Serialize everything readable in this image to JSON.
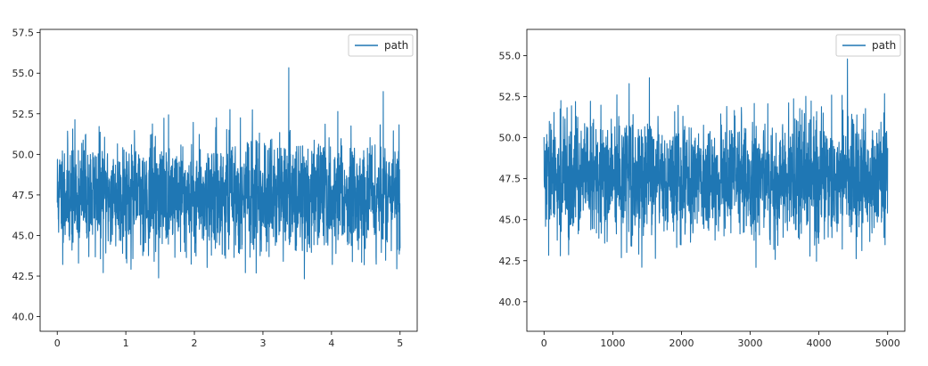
{
  "chart_data": [
    {
      "type": "line",
      "series": [
        {
          "name": "path",
          "color": "#1f77b4",
          "process": {
            "mean": 47.5,
            "sd": 1.7,
            "n": 2000
          }
        }
      ],
      "x_range": [
        0,
        5
      ],
      "xlim": [
        -0.25,
        5.25
      ],
      "ylim": [
        39.1,
        57.7
      ],
      "xticks": [
        0,
        1,
        2,
        3,
        4,
        5
      ],
      "yticks": [
        40.0,
        42.5,
        45.0,
        47.5,
        50.0,
        52.5,
        55.0,
        57.5
      ],
      "xtick_labels": [
        "0",
        "1",
        "2",
        "3",
        "4",
        "5"
      ],
      "ytick_labels": [
        "40.0",
        "42.5",
        "45.0",
        "47.5",
        "50.0",
        "52.5",
        "55.0",
        "57.5"
      ],
      "legend": {
        "position": "top-right",
        "label": "path"
      },
      "grid": false
    },
    {
      "type": "line",
      "series": [
        {
          "name": "path",
          "color": "#1f77b4",
          "process": {
            "mean": 47.5,
            "sd": 1.8,
            "n": 2000
          }
        }
      ],
      "x_range": [
        0,
        5000
      ],
      "xlim": [
        -250,
        5250
      ],
      "ylim": [
        38.2,
        56.6
      ],
      "xticks": [
        0,
        1000,
        2000,
        3000,
        4000,
        5000
      ],
      "yticks": [
        40.0,
        42.5,
        45.0,
        47.5,
        50.0,
        52.5,
        55.0
      ],
      "xtick_labels": [
        "0",
        "1000",
        "2000",
        "3000",
        "4000",
        "5000"
      ],
      "ytick_labels": [
        "40.0",
        "42.5",
        "45.0",
        "47.5",
        "50.0",
        "52.5",
        "55.0"
      ],
      "legend": {
        "position": "top-right",
        "label": "path"
      },
      "grid": false
    }
  ]
}
